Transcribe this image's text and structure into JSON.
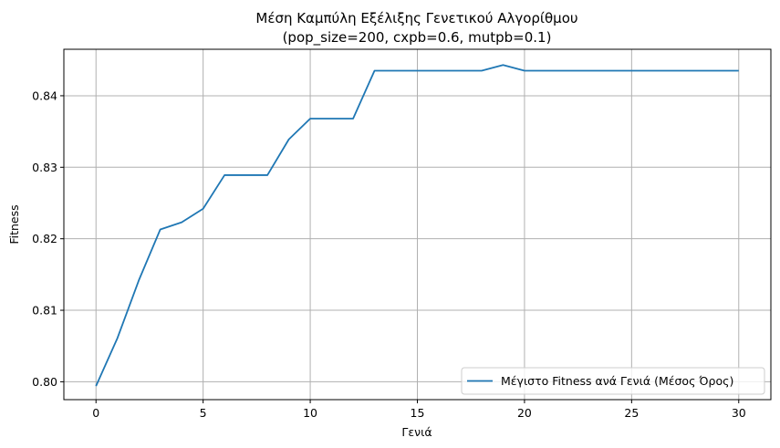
{
  "chart_data": {
    "type": "line",
    "title_line1": "Μέση Καμπύλη Εξέλιξης Γενετικού Αλγορίθμου",
    "title_line2": "(pop_size=200, cxpb=0.6, mutpb=0.1)",
    "xlabel": "Γενιά",
    "ylabel": "Fitness",
    "xlim": [
      -1.5,
      31.5
    ],
    "ylim": [
      0.7975,
      0.8465
    ],
    "xticks": [
      0,
      5,
      10,
      15,
      20,
      25,
      30
    ],
    "yticks": [
      0.8,
      0.81,
      0.82,
      0.83,
      0.84
    ],
    "ytick_labels": [
      "0.80",
      "0.81",
      "0.82",
      "0.83",
      "0.84"
    ],
    "grid": true,
    "legend_position": "lower-right",
    "series": [
      {
        "name": "Μέγιστο Fitness ανά Γενιά (Μέσος Όρος)",
        "color": "#1f77b4",
        "x": [
          0,
          1,
          2,
          3,
          4,
          5,
          6,
          7,
          8,
          9,
          10,
          11,
          12,
          13,
          14,
          15,
          16,
          17,
          18,
          19,
          20,
          21,
          22,
          23,
          24,
          25,
          26,
          27,
          28,
          29,
          30
        ],
        "y": [
          0.7994,
          0.8061,
          0.8142,
          0.8213,
          0.8223,
          0.8242,
          0.8289,
          0.8289,
          0.8289,
          0.8339,
          0.8368,
          0.8368,
          0.8368,
          0.8435,
          0.8435,
          0.8435,
          0.8435,
          0.8435,
          0.8435,
          0.8443,
          0.8435,
          0.8435,
          0.8435,
          0.8435,
          0.8435,
          0.8435,
          0.8435,
          0.8435,
          0.8435,
          0.8435,
          0.8435
        ]
      }
    ]
  }
}
